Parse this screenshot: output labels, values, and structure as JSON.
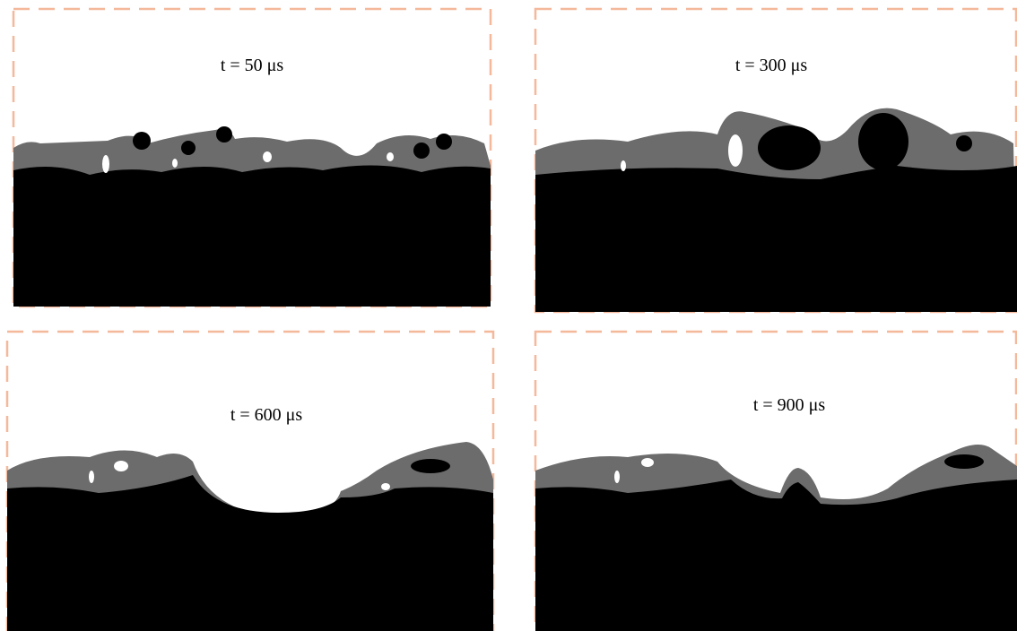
{
  "panels": [
    {
      "label": "t = 50 μs"
    },
    {
      "label": "t = 300 μs"
    },
    {
      "label": "t = 600 μs"
    },
    {
      "label": "t = 900 μs"
    }
  ]
}
